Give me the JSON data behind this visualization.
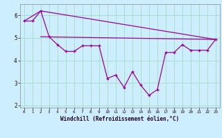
{
  "xlabel": "Windchill (Refroidissement éolien,°C)",
  "background_color": "#cceeff",
  "grid_color": "#aaddcc",
  "line_color": "#990099",
  "xlim": [
    -0.5,
    23.5
  ],
  "ylim": [
    1.9,
    6.5
  ],
  "yticks": [
    2,
    3,
    4,
    5,
    6
  ],
  "xticks": [
    0,
    1,
    2,
    3,
    4,
    5,
    6,
    7,
    8,
    9,
    10,
    11,
    12,
    13,
    14,
    15,
    16,
    17,
    18,
    19,
    20,
    21,
    22,
    23
  ],
  "line1_x": [
    0,
    1,
    2,
    3,
    4,
    5,
    6,
    7,
    8,
    9,
    10,
    11,
    12,
    13,
    14,
    15,
    16,
    17,
    18,
    19,
    20,
    21,
    22,
    23
  ],
  "line1_y": [
    5.75,
    5.75,
    6.2,
    5.05,
    4.7,
    4.4,
    4.4,
    4.65,
    4.65,
    4.65,
    3.2,
    3.35,
    2.8,
    3.5,
    2.9,
    2.45,
    2.7,
    4.35,
    4.35,
    4.7,
    4.45,
    4.45,
    4.45,
    4.93
  ],
  "line2_x": [
    0,
    2,
    23
  ],
  "line2_y": [
    5.75,
    6.2,
    4.93
  ],
  "line3_x": [
    2,
    23
  ],
  "line3_y": [
    5.05,
    4.93
  ]
}
